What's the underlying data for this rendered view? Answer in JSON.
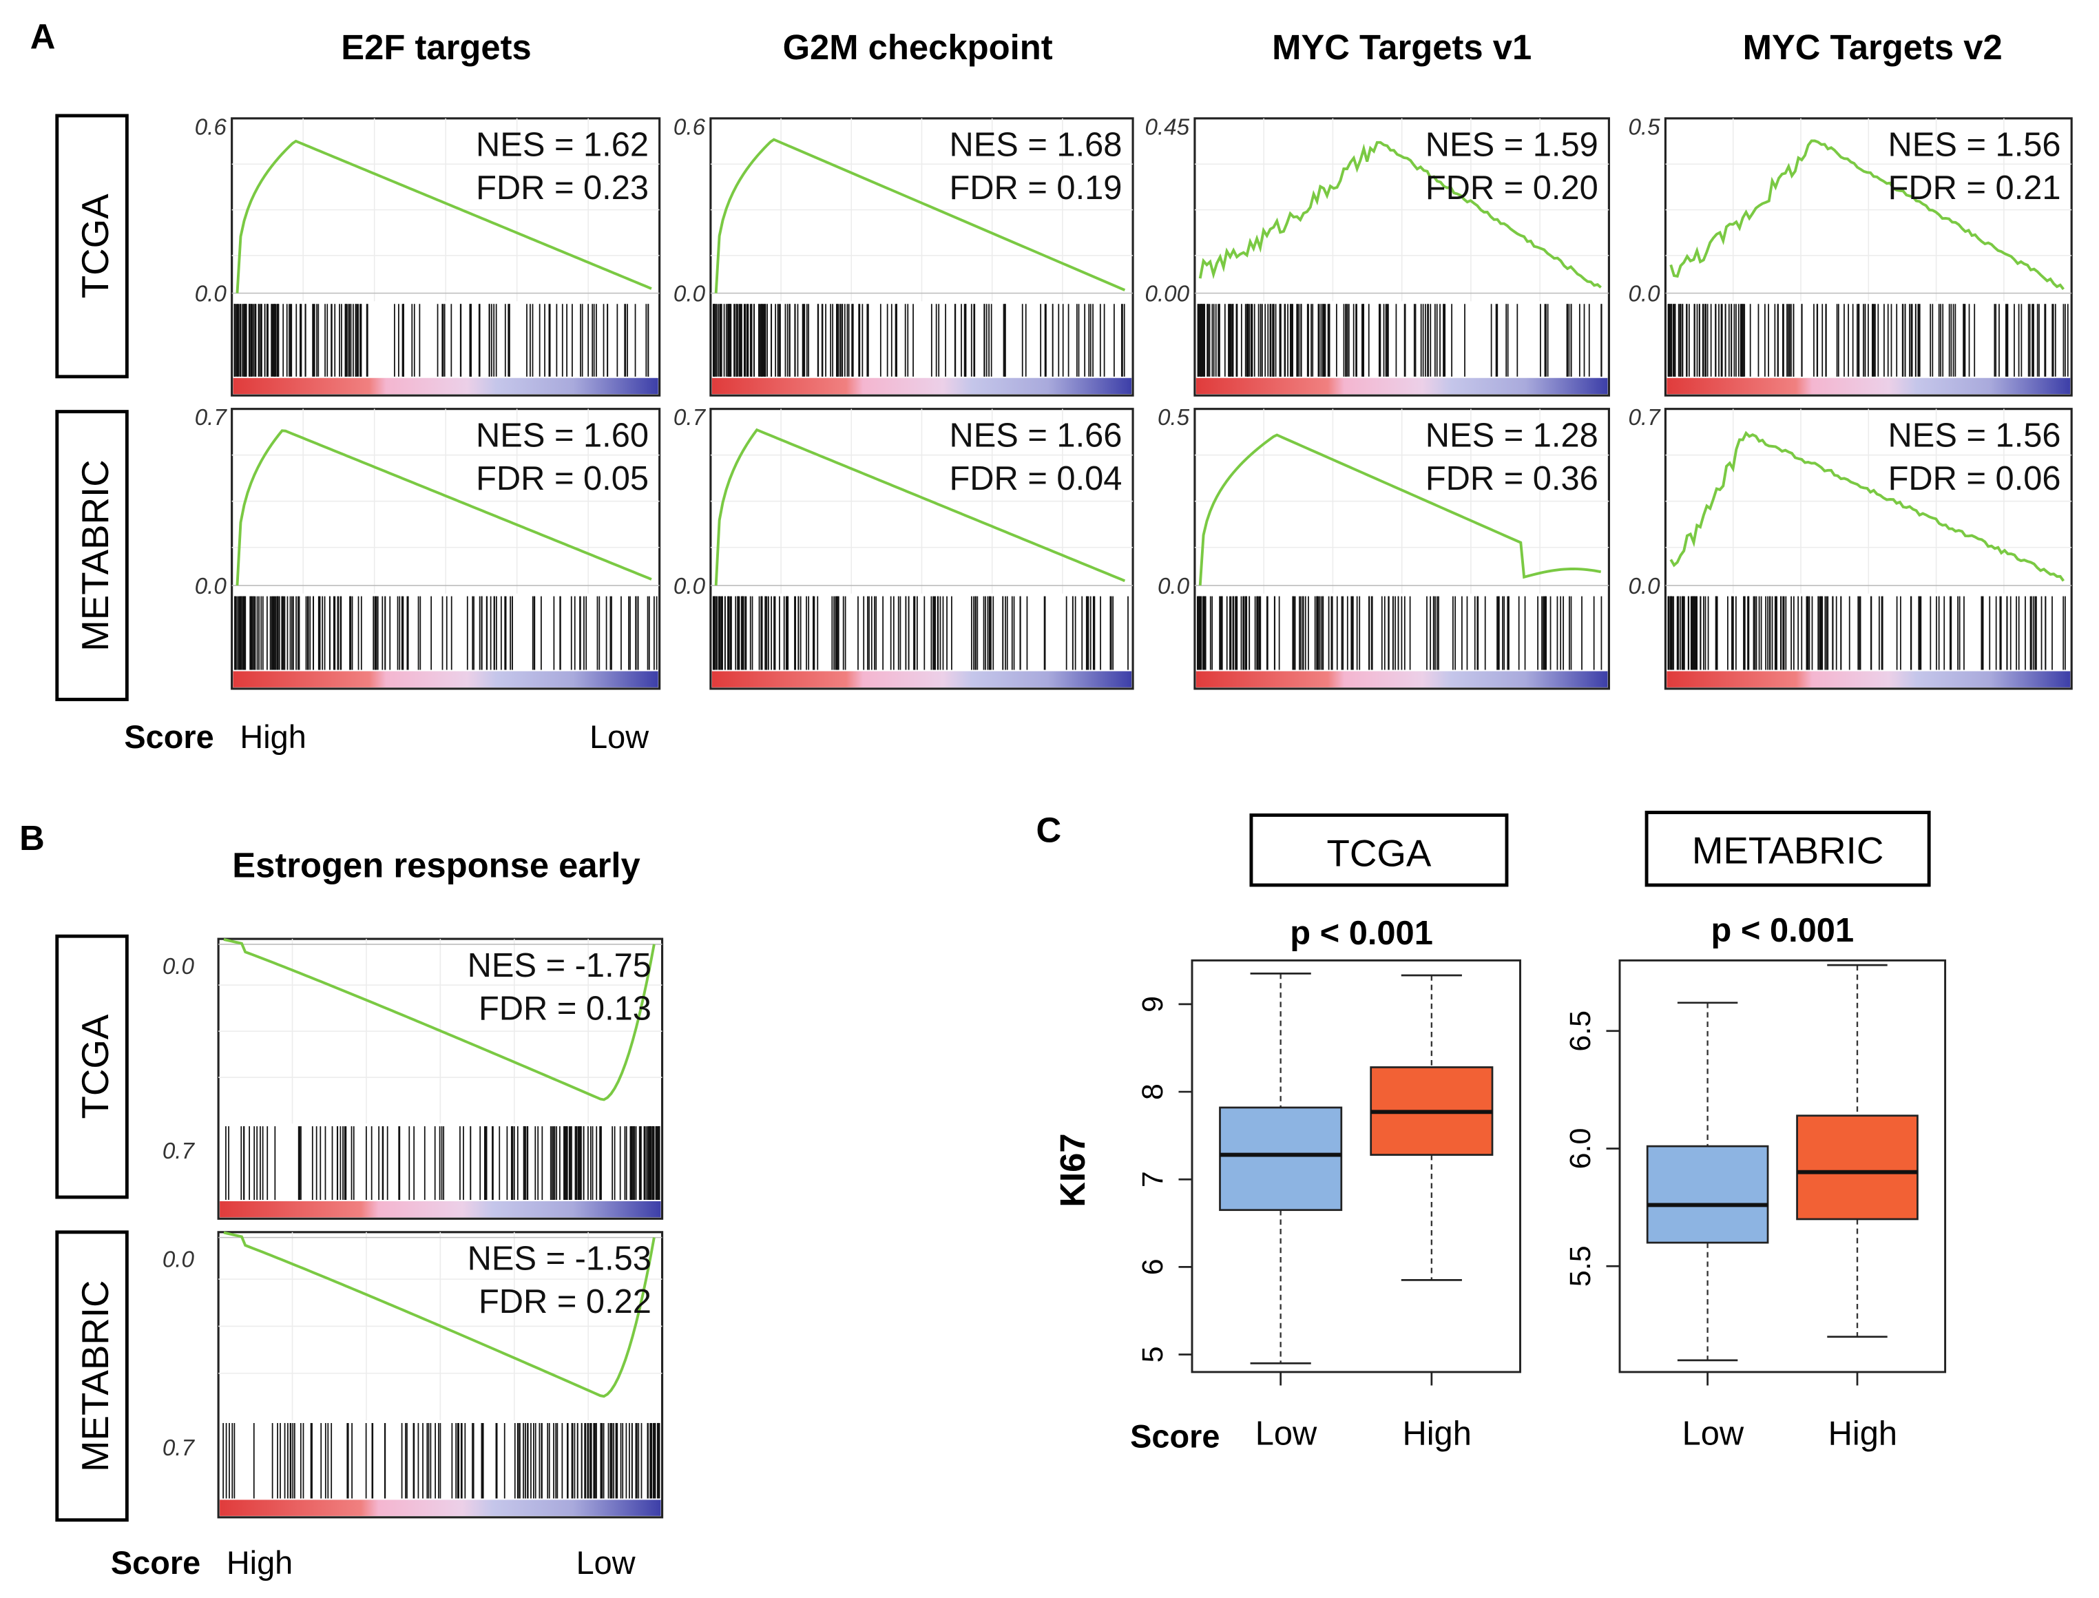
{
  "panel_labels": {
    "a": "A",
    "b": "B",
    "c": "C"
  },
  "colors": {
    "curve": "#7ac943",
    "box_low": "#8db4e2",
    "box_high": "#f26135",
    "ranked_high": "#e03c3c",
    "ranked_mid": "#f4b6d0",
    "ranked_low_mid": "#c5c6ea",
    "ranked_low": "#3d3fa8"
  },
  "panel_a": {
    "row_labels": [
      "TCGA",
      "METABRIC"
    ],
    "score_label": "Score",
    "axis_high": "High",
    "axis_low": "Low",
    "columns": [
      {
        "title": "E2F targets",
        "plots": [
          {
            "ymax_label": "0.6",
            "zero_label": "0.0",
            "nes": "NES = 1.62",
            "fdr": "FDR = 0.23",
            "peak_pos": 0.14,
            "peak": 0.96,
            "shape": "smooth",
            "end": 0.03
          },
          {
            "ymax_label": "0.7",
            "zero_label": "0.0",
            "nes": "NES = 1.60",
            "fdr": "FDR = 0.05",
            "peak_pos": 0.11,
            "peak": 0.97,
            "shape": "smooth",
            "end": 0.04
          }
        ]
      },
      {
        "title": "G2M checkpoint",
        "plots": [
          {
            "ymax_label": "0.6",
            "zero_label": "0.0",
            "nes": "NES = 1.68",
            "fdr": "FDR = 0.19",
            "peak_pos": 0.14,
            "peak": 0.97,
            "shape": "smooth",
            "end": 0.02
          },
          {
            "ymax_label": "0.7",
            "zero_label": "0.0",
            "nes": "NES = 1.66",
            "fdr": "FDR = 0.04",
            "peak_pos": 0.1,
            "peak": 0.97,
            "shape": "smooth",
            "end": 0.03
          }
        ]
      },
      {
        "title": "MYC Targets v1",
        "plots": [
          {
            "ymax_label": "0.45",
            "zero_label": "0.00",
            "nes": "NES = 1.59",
            "fdr": "FDR = 0.20",
            "peak_pos": 0.45,
            "peak": 0.95,
            "shape": "rough",
            "end": 0.03
          },
          {
            "ymax_label": "0.5",
            "zero_label": "0.0",
            "nes": "NES = 1.28",
            "fdr": "FDR = 0.36",
            "peak_pos": 0.19,
            "peak": 0.94,
            "shape": "dip",
            "end": 0.05
          }
        ]
      },
      {
        "title": "MYC Targets v2",
        "plots": [
          {
            "ymax_label": "0.5",
            "zero_label": "0.0",
            "nes": "NES = 1.56",
            "fdr": "FDR = 0.21",
            "peak_pos": 0.37,
            "peak": 0.96,
            "shape": "rough",
            "end": 0.03
          },
          {
            "ymax_label": "0.7",
            "zero_label": "0.0",
            "nes": "NES = 1.56",
            "fdr": "FDR = 0.06",
            "peak_pos": 0.19,
            "peak": 0.95,
            "shape": "rough",
            "end": 0.04
          }
        ]
      }
    ]
  },
  "panel_b": {
    "title": "Estrogen response early",
    "row_labels": [
      "TCGA",
      "METABRIC"
    ],
    "score_label": "Score",
    "axis_high": "High",
    "axis_low": "Low",
    "plots": [
      {
        "top_label": "0.0",
        "bottom_label": "0.7",
        "nes": "NES = -1.75",
        "fdr": "FDR =  0.13"
      },
      {
        "top_label": "0.0",
        "bottom_label": "0.7",
        "nes": "NES = -1.53",
        "fdr": "FDR =  0.22"
      }
    ]
  },
  "chart_data": [
    {
      "type": "box",
      "title": "TCGA",
      "pvalue": "p < 0.001",
      "ylabel": "KI67",
      "xlabel": "Score",
      "categories": [
        "Low",
        "High"
      ],
      "ylim": [
        4.8,
        9.5
      ],
      "ticks": [
        "5",
        "6",
        "7",
        "8",
        "9"
      ],
      "boxes": [
        {
          "name": "Low",
          "min": 4.9,
          "q1": 6.65,
          "median": 7.28,
          "q3": 7.82,
          "max": 9.35
        },
        {
          "name": "High",
          "min": 5.85,
          "q1": 7.28,
          "median": 7.77,
          "q3": 8.28,
          "max": 9.33
        }
      ]
    },
    {
      "type": "box",
      "title": "METABRIC",
      "pvalue": "p < 0.001",
      "ylabel": "",
      "xlabel": "",
      "categories": [
        "Low",
        "High"
      ],
      "ylim": [
        5.05,
        6.8
      ],
      "ticks": [
        "5.5",
        "6.0",
        "6.5"
      ],
      "boxes": [
        {
          "name": "Low",
          "min": 5.1,
          "q1": 5.6,
          "median": 5.76,
          "q3": 6.01,
          "max": 6.62
        },
        {
          "name": "High",
          "min": 5.2,
          "q1": 5.7,
          "median": 5.9,
          "q3": 6.14,
          "max": 6.78
        }
      ]
    }
  ]
}
